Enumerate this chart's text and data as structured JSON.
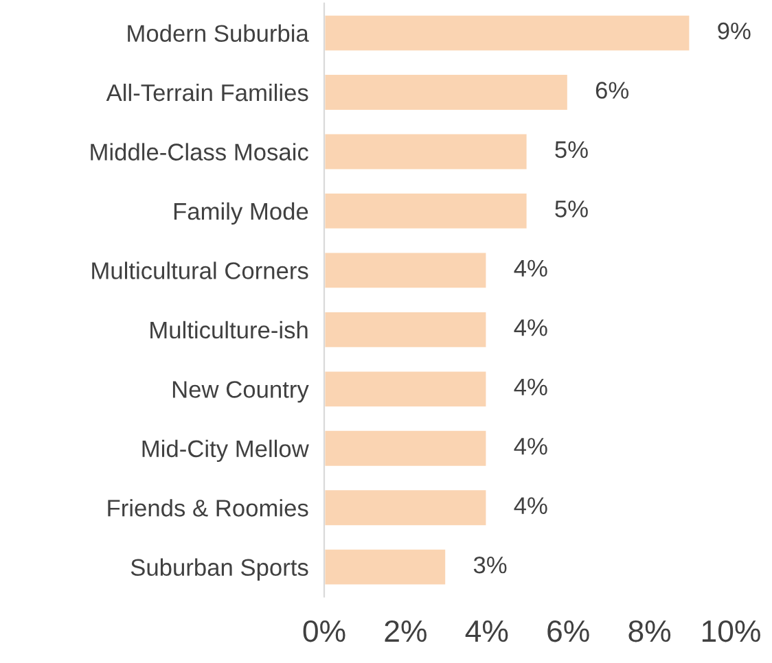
{
  "chart_data": {
    "type": "bar",
    "orientation": "horizontal",
    "categories": [
      "Modern Suburbia",
      "All-Terrain Families",
      "Middle-Class Mosaic",
      "Family Mode",
      "Multicultural Corners",
      "Multiculture-ish",
      "New Country",
      "Mid-City Mellow",
      "Friends & Roomies",
      "Suburban Sports"
    ],
    "values": [
      9,
      6,
      5,
      5,
      4,
      4,
      4,
      4,
      4,
      3
    ],
    "value_labels": [
      "9%",
      "6%",
      "5%",
      "5%",
      "4%",
      "4%",
      "4%",
      "4%",
      "4%",
      "3%"
    ],
    "color": "#fad4b2",
    "xlim": [
      0,
      10
    ],
    "xticks": [
      {
        "value": 0,
        "label": "0%"
      },
      {
        "value": 2,
        "label": "2%"
      },
      {
        "value": 4,
        "label": "4%"
      },
      {
        "value": 6,
        "label": "6%"
      },
      {
        "value": 8,
        "label": "8%"
      },
      {
        "value": 10,
        "label": "10%"
      }
    ],
    "grid": false,
    "legend": false
  }
}
